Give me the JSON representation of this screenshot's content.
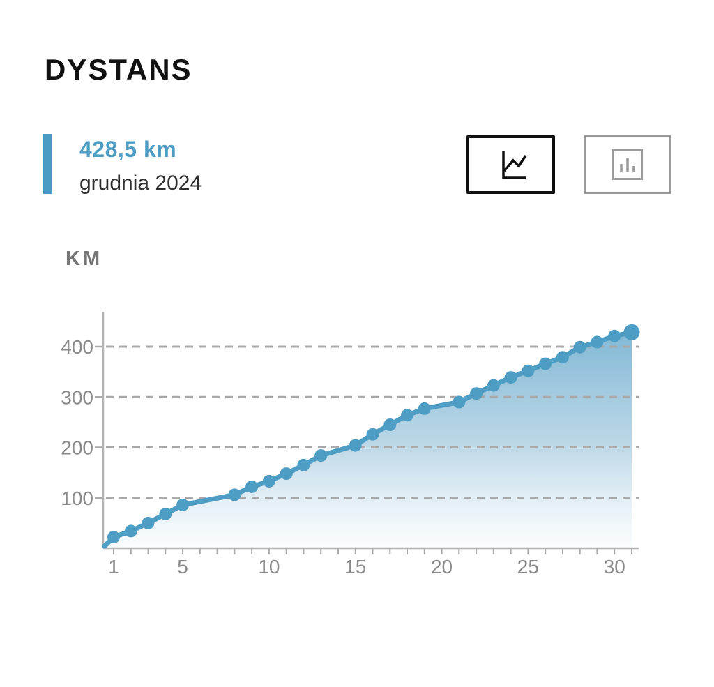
{
  "header": {
    "title": "DYSTANS"
  },
  "stat": {
    "value": "428,5 km",
    "period": "grudnia 2024",
    "accent_color": "#4a9bc3",
    "value_color": "#4d9cc3"
  },
  "view_toggle": {
    "options": [
      {
        "id": "line-chart-view",
        "icon": "line-chart-icon",
        "active": true
      },
      {
        "id": "bar-chart-view",
        "icon": "bar-chart-icon",
        "active": false
      }
    ]
  },
  "chart": {
    "unit_label": "KM"
  },
  "chart_data": {
    "type": "area",
    "title": "DYSTANS",
    "xlabel": "",
    "ylabel": "KM",
    "unit": "km",
    "x": [
      1,
      2,
      3,
      4,
      5,
      8,
      9,
      10,
      11,
      12,
      13,
      15,
      16,
      17,
      18,
      19,
      21,
      22,
      23,
      24,
      25,
      26,
      27,
      28,
      29,
      30,
      31
    ],
    "values": [
      22,
      34,
      50,
      68,
      86,
      106,
      122,
      133,
      148,
      165,
      184,
      204,
      226,
      245,
      264,
      277,
      290,
      307,
      323,
      339,
      352,
      366,
      379,
      399,
      409,
      421,
      428.5
    ],
    "x_ticks": [
      1,
      5,
      10,
      15,
      20,
      25,
      30
    ],
    "y_ticks": [
      100,
      200,
      300,
      400
    ],
    "x_range": [
      1,
      31
    ],
    "xlim": [
      0.4,
      31.5
    ],
    "ylim": [
      0,
      470
    ],
    "grid": "horizontal-dashed",
    "legend": "none",
    "area_fill": true,
    "line_color": "#4e9dc4",
    "gradient_top_color": "#72b0d0",
    "gradient_bottom_color": "#f7fbfd",
    "final_total_km": 428.5
  }
}
